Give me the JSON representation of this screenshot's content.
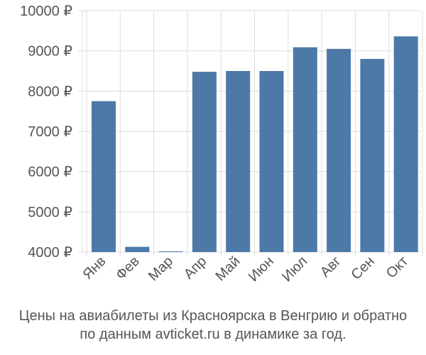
{
  "chart_data": {
    "type": "bar",
    "categories": [
      "Янв",
      "Фев",
      "Мар",
      "Апр",
      "Май",
      "Июн",
      "Июл",
      "Авг",
      "Сен",
      "Окт"
    ],
    "values": [
      7750,
      4130,
      4010,
      8480,
      8500,
      8500,
      9090,
      9050,
      8800,
      9360
    ],
    "ylim": [
      4000,
      10000
    ],
    "yticks": [
      4000,
      5000,
      6000,
      7000,
      8000,
      9000,
      10000
    ],
    "ytick_labels": [
      "4000 ₽",
      "5000 ₽",
      "6000 ₽",
      "7000 ₽",
      "8000 ₽",
      "9000 ₽",
      "10000 ₽"
    ],
    "grid": true,
    "bar_color": "#4d79a8",
    "grid_color": "#dddddd",
    "text_color": "#555555"
  },
  "caption": {
    "line1": "Цены на авиабилеты из Красноярска в Венгрию и обратно",
    "line2": "по данным avticket.ru в динамике за год."
  }
}
